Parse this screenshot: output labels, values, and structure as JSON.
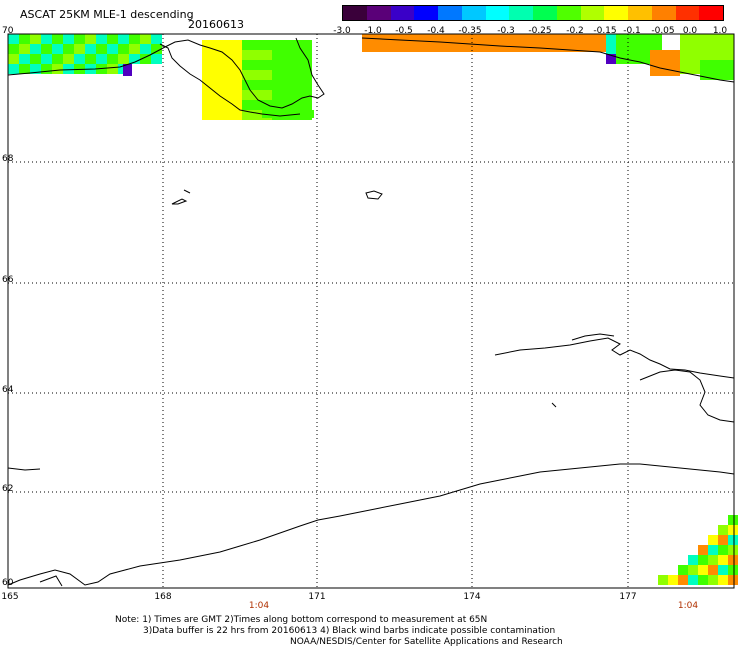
{
  "header": {
    "title": "ASCAT 25KM MLE-1 descending",
    "date": "20160613"
  },
  "colorbar": {
    "tick_labels": [
      "-3.0",
      "-1.0",
      "-0.5",
      "-0.4",
      "-0.35",
      "-0.3",
      "-0.25",
      "-0.2",
      "-0.15",
      "-0.1",
      "-0.05",
      "0.0",
      "1.0"
    ],
    "colors": [
      "#3a003a",
      "#5a0078",
      "#3a00c8",
      "#0000ff",
      "#0078ff",
      "#00c8ff",
      "#00ffff",
      "#00ffb0",
      "#00ff50",
      "#50ff00",
      "#b0ff00",
      "#ffff00",
      "#ffc000",
      "#ff8000",
      "#ff3000",
      "#ff0000"
    ]
  },
  "map": {
    "lat_labels": [
      "70",
      "68",
      "66",
      "64",
      "62",
      "60"
    ],
    "lon_labels": [
      "165",
      "168",
      "171",
      "174",
      "177"
    ],
    "time_labels": [
      "1:04",
      "1:04"
    ],
    "colors": {
      "yellow": "#ffff00",
      "green": "#40ff00",
      "lime": "#90ff00",
      "cyan": "#00ffc0",
      "orange": "#ff8c00",
      "purple": "#5000c0",
      "coast": "#000000",
      "grid": "#000000"
    }
  },
  "notes": {
    "line1": "Note: 1) Times are GMT 2)Times along bottom correspond to measurement at 65N",
    "line2": "3)Data buffer is 22 hrs from 20160613 4) Black wind barbs indicate possible contamination",
    "line3": "NOAA/NESDIS/Center for Satellite Applications and Research"
  }
}
